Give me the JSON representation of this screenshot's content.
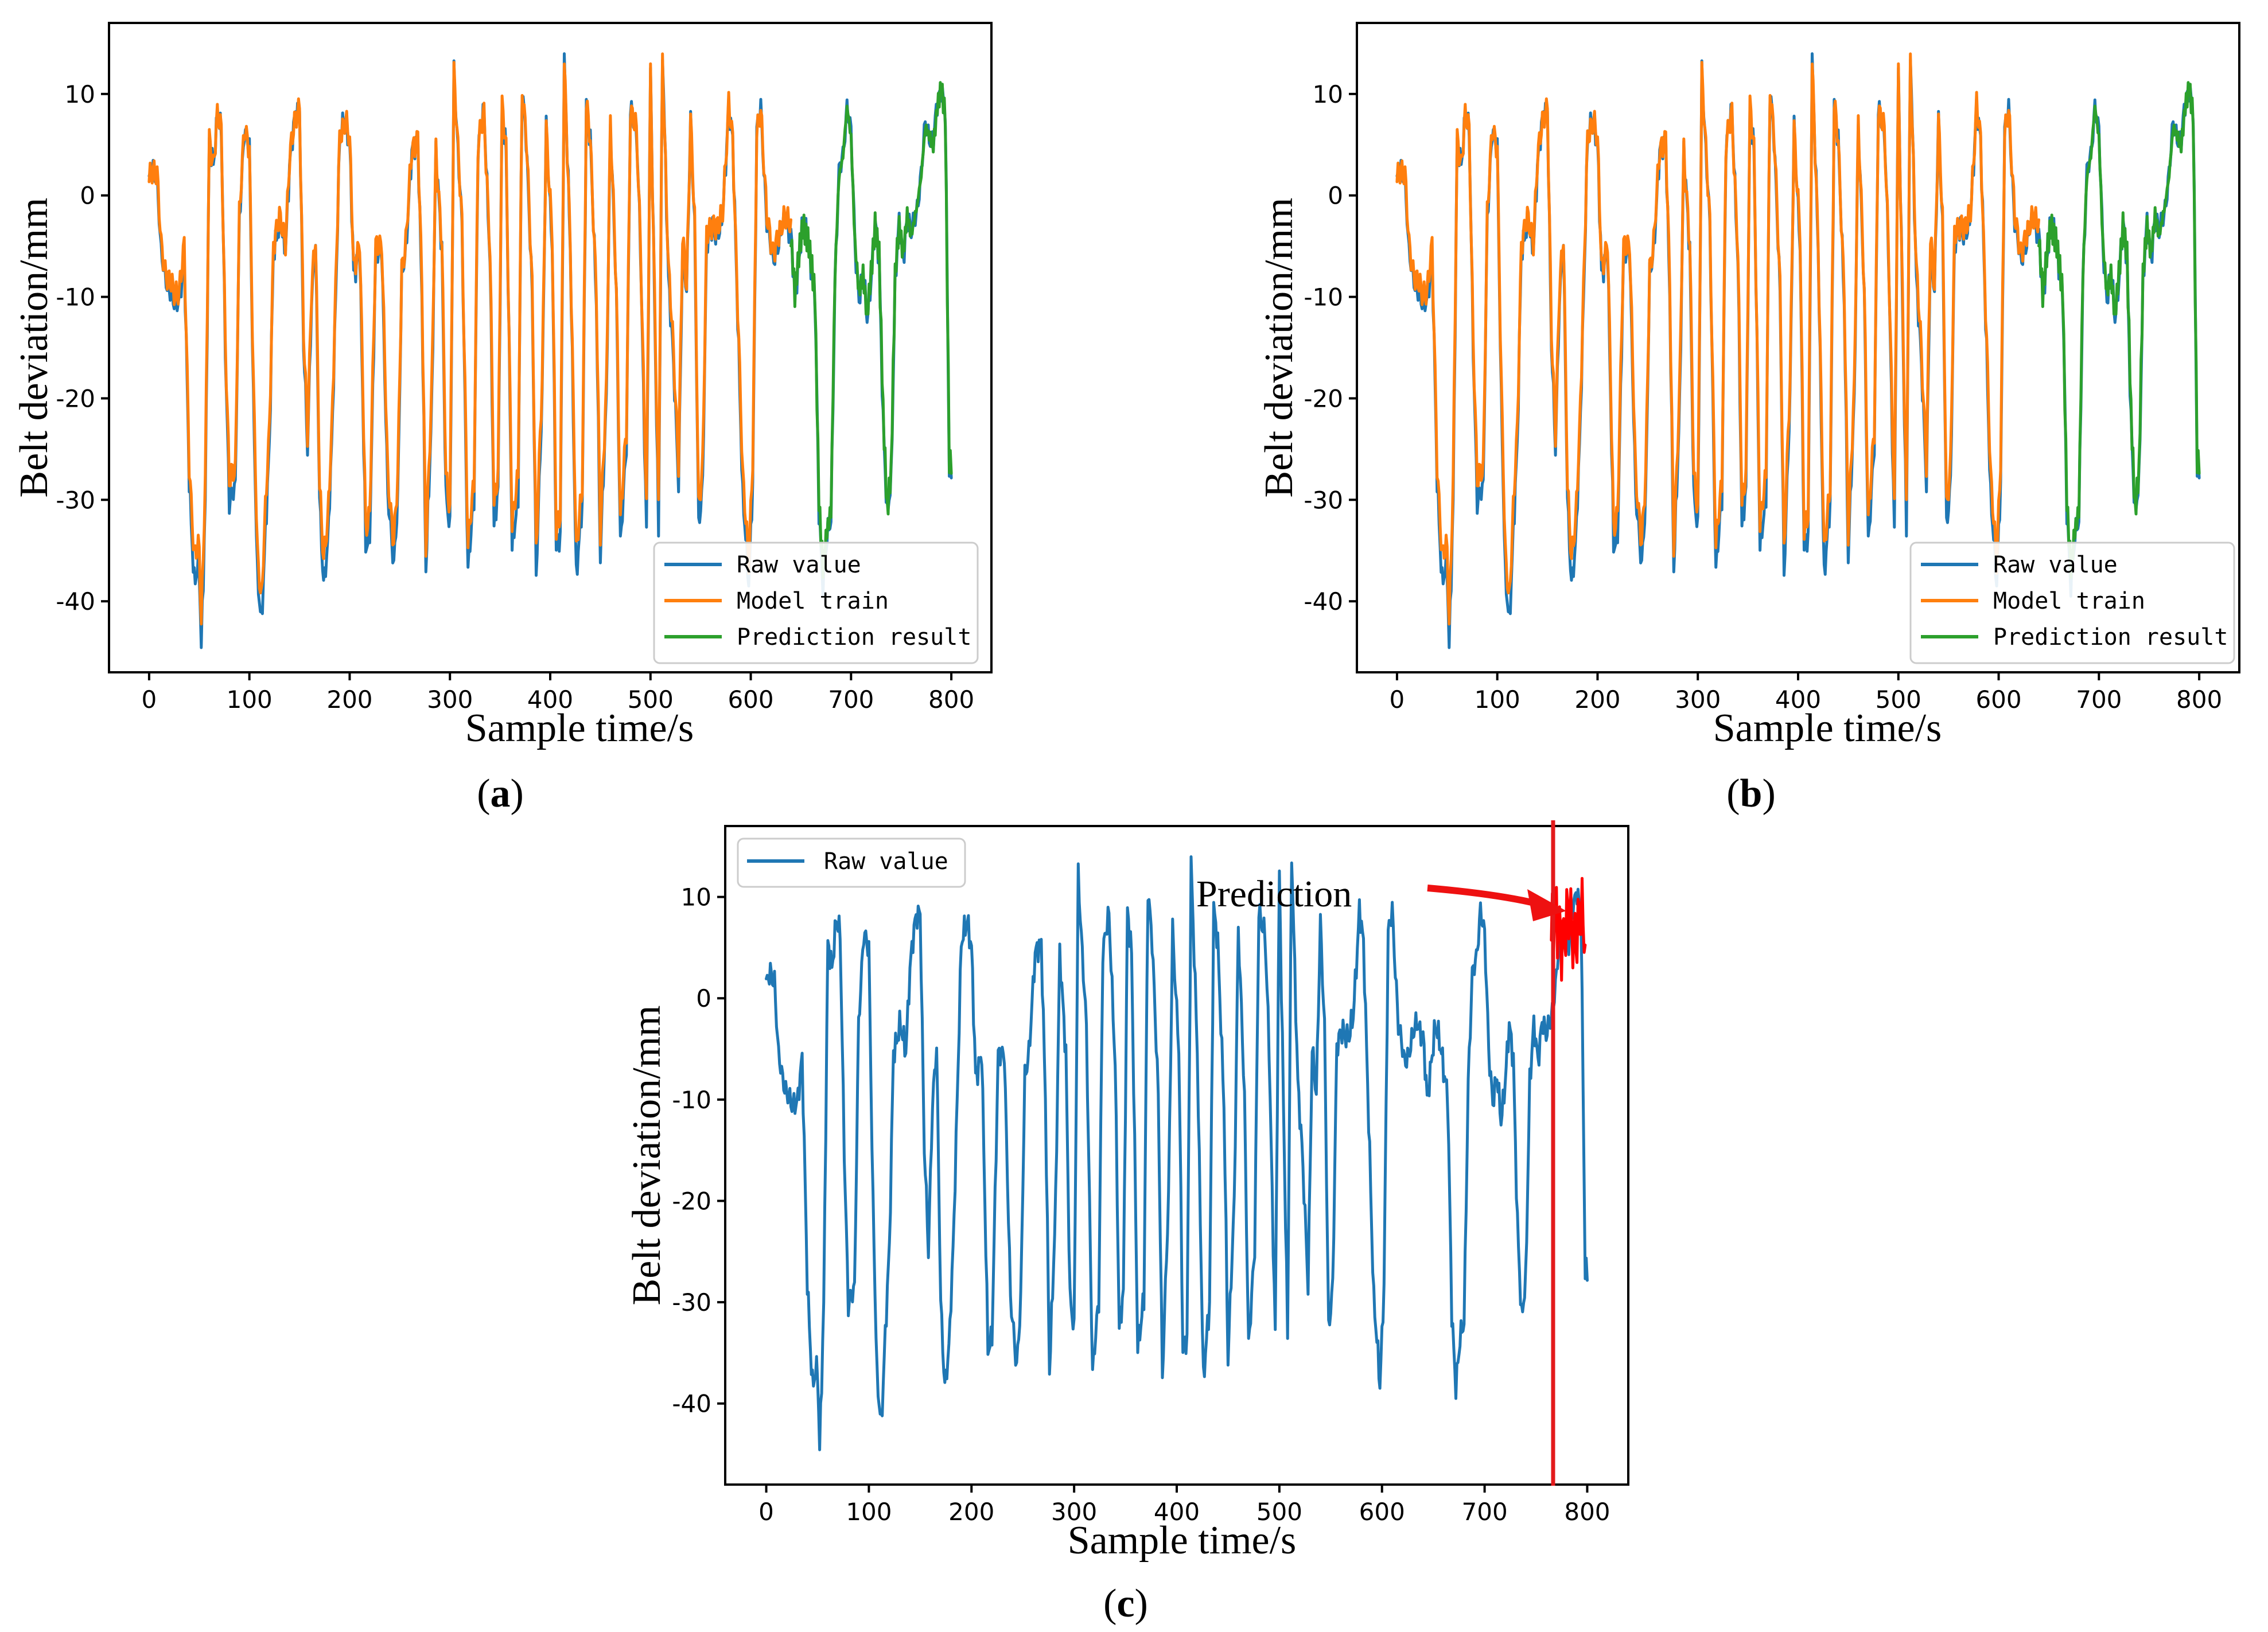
{
  "chart_data": [
    {
      "panel": "a",
      "type": "line",
      "xlabel": "Sample time/s",
      "ylabel": "Belt deviation/mm",
      "xlim": [
        -40,
        840
      ],
      "ylim": [
        -47,
        17
      ],
      "xticks": [
        0,
        100,
        200,
        300,
        400,
        500,
        600,
        700,
        800
      ],
      "yticks": [
        10,
        0,
        -10,
        -20,
        -30,
        -40
      ],
      "legend_position": "lower-right",
      "legend": [
        "Raw value",
        "Model train",
        "Prediction result"
      ],
      "series": [
        {
          "name": "Raw value",
          "color": "#1f77b4",
          "x_range": [
            0,
            800
          ]
        },
        {
          "name": "Model train",
          "color": "#ff7f0e",
          "x_range": [
            0,
            640
          ]
        },
        {
          "name": "Prediction result",
          "color": "#2ca02c",
          "x_range": [
            640,
            800
          ]
        }
      ]
    },
    {
      "panel": "b",
      "type": "line",
      "xlabel": "Sample time/s",
      "ylabel": "Belt deviation/mm",
      "xlim": [
        -40,
        840
      ],
      "ylim": [
        -47,
        17
      ],
      "xticks": [
        0,
        100,
        200,
        300,
        400,
        500,
        600,
        700,
        800
      ],
      "yticks": [
        10,
        0,
        -10,
        -20,
        -30,
        -40
      ],
      "legend_position": "lower-right",
      "legend": [
        "Raw value",
        "Model train",
        "Prediction result"
      ],
      "series": [
        {
          "name": "Raw value",
          "color": "#1f77b4",
          "x_range": [
            0,
            800
          ]
        },
        {
          "name": "Model train",
          "color": "#ff7f0e",
          "x_range": [
            0,
            640
          ]
        },
        {
          "name": "Prediction result",
          "color": "#2ca02c",
          "x_range": [
            640,
            800
          ]
        }
      ]
    },
    {
      "panel": "c",
      "type": "line",
      "xlabel": "Sample time/s",
      "ylabel": "Belt deviation/mm",
      "xlim": [
        -40,
        840
      ],
      "ylim": [
        -48,
        17
      ],
      "xticks": [
        0,
        100,
        200,
        300,
        400,
        500,
        600,
        700,
        800
      ],
      "yticks": [
        10,
        0,
        -10,
        -20,
        -30,
        -40
      ],
      "legend_position": "upper-left",
      "legend": [
        "Raw value"
      ],
      "annotation": "Prediction",
      "prediction_start": 765,
      "series": [
        {
          "name": "Raw value",
          "color": "#1f77b4",
          "x_range": [
            0,
            800
          ]
        },
        {
          "name": "Prediction",
          "color": "#ff0000",
          "x_range": [
            765,
            798
          ]
        }
      ]
    }
  ],
  "raw_series_keypoints": [
    [
      0,
      1
    ],
    [
      4,
      2.5
    ],
    [
      8,
      2
    ],
    [
      12,
      -6
    ],
    [
      16,
      -8
    ],
    [
      20,
      -9
    ],
    [
      25,
      -11
    ],
    [
      30,
      -10
    ],
    [
      35,
      -6
    ],
    [
      40,
      -28
    ],
    [
      45,
      -38
    ],
    [
      50,
      -37
    ],
    [
      52,
      -44.5
    ],
    [
      56,
      -30
    ],
    [
      60,
      5
    ],
    [
      64,
      3
    ],
    [
      68,
      8
    ],
    [
      72,
      6
    ],
    [
      76,
      -15
    ],
    [
      80,
      -30
    ],
    [
      86,
      -29
    ],
    [
      90,
      -2
    ],
    [
      95,
      6
    ],
    [
      100,
      5
    ],
    [
      104,
      -20
    ],
    [
      108,
      -38
    ],
    [
      112,
      -42
    ],
    [
      116,
      -33
    ],
    [
      120,
      -25
    ],
    [
      124,
      -5
    ],
    [
      130,
      -3
    ],
    [
      136,
      -5
    ],
    [
      140,
      3
    ],
    [
      146,
      8
    ],
    [
      150,
      9
    ],
    [
      154,
      -15
    ],
    [
      158,
      -25
    ],
    [
      162,
      -10
    ],
    [
      166,
      -5
    ],
    [
      170,
      -30
    ],
    [
      174,
      -38
    ],
    [
      178,
      -35
    ],
    [
      182,
      -25
    ],
    [
      186,
      -10
    ],
    [
      190,
      5
    ],
    [
      196,
      8
    ],
    [
      200,
      5
    ],
    [
      204,
      -8
    ],
    [
      210,
      -5
    ],
    [
      216,
      -35
    ],
    [
      220,
      -33
    ],
    [
      226,
      -6
    ],
    [
      232,
      -5
    ],
    [
      238,
      -30
    ],
    [
      244,
      -36
    ],
    [
      248,
      -30
    ],
    [
      252,
      -8
    ],
    [
      256,
      -5
    ],
    [
      262,
      4
    ],
    [
      268,
      6
    ],
    [
      272,
      -10
    ],
    [
      276,
      -37
    ],
    [
      282,
      -20
    ],
    [
      286,
      4
    ],
    [
      292,
      -5
    ],
    [
      296,
      -30
    ],
    [
      300,
      -33
    ],
    [
      304,
      12.5
    ],
    [
      308,
      4
    ],
    [
      312,
      -3
    ],
    [
      318,
      -37
    ],
    [
      324,
      -30
    ],
    [
      328,
      5
    ],
    [
      334,
      8
    ],
    [
      340,
      -6
    ],
    [
      344,
      -33
    ],
    [
      348,
      -29
    ],
    [
      352,
      9
    ],
    [
      356,
      4
    ],
    [
      362,
      -34
    ],
    [
      368,
      -30
    ],
    [
      372,
      11
    ],
    [
      376,
      6
    ],
    [
      382,
      -10
    ],
    [
      386,
      -37
    ],
    [
      392,
      -20
    ],
    [
      396,
      7
    ],
    [
      402,
      -5
    ],
    [
      406,
      -35
    ],
    [
      410,
      -33
    ],
    [
      414,
      13
    ],
    [
      420,
      -5
    ],
    [
      426,
      -38
    ],
    [
      432,
      -30
    ],
    [
      436,
      9
    ],
    [
      440,
      5
    ],
    [
      446,
      -10
    ],
    [
      450,
      -36
    ],
    [
      456,
      -20
    ],
    [
      460,
      7
    ],
    [
      466,
      -10
    ],
    [
      470,
      -34
    ],
    [
      476,
      -25
    ],
    [
      480,
      9
    ],
    [
      486,
      6
    ],
    [
      490,
      -5
    ],
    [
      496,
      -33
    ],
    [
      500,
      12
    ],
    [
      504,
      -10
    ],
    [
      508,
      -33
    ],
    [
      512,
      14
    ],
    [
      518,
      -8
    ],
    [
      522,
      -15
    ],
    [
      528,
      -28
    ],
    [
      532,
      -5
    ],
    [
      536,
      -10
    ],
    [
      540,
      8
    ],
    [
      544,
      -3
    ],
    [
      548,
      -33
    ],
    [
      552,
      -28
    ],
    [
      556,
      -5
    ],
    [
      562,
      -3
    ],
    [
      568,
      -4
    ],
    [
      572,
      -2
    ],
    [
      578,
      9
    ],
    [
      582,
      5
    ],
    [
      588,
      -15
    ],
    [
      592,
      -30
    ],
    [
      598,
      -38
    ],
    [
      602,
      -28
    ],
    [
      606,
      6
    ],
    [
      610,
      9
    ],
    [
      616,
      -3
    ],
    [
      622,
      -6
    ],
    [
      628,
      -5
    ],
    [
      634,
      -2
    ],
    [
      640,
      -4
    ],
    [
      644,
      -10
    ],
    [
      648,
      -6
    ],
    [
      652,
      -3
    ],
    [
      658,
      -5
    ],
    [
      664,
      -10
    ],
    [
      668,
      -31
    ],
    [
      672,
      -38
    ],
    [
      676,
      -34
    ],
    [
      680,
      -32
    ],
    [
      684,
      -8
    ],
    [
      688,
      2
    ],
    [
      692,
      4
    ],
    [
      696,
      9
    ],
    [
      700,
      6
    ],
    [
      704,
      -5
    ],
    [
      708,
      -10
    ],
    [
      712,
      -8
    ],
    [
      716,
      -12
    ],
    [
      720,
      -8
    ],
    [
      724,
      -3
    ],
    [
      728,
      -6
    ],
    [
      732,
      -22
    ],
    [
      736,
      -32
    ],
    [
      740,
      -28
    ],
    [
      744,
      -8
    ],
    [
      748,
      -3
    ],
    [
      752,
      -6
    ],
    [
      756,
      -2
    ],
    [
      760,
      -4
    ],
    [
      766,
      -1
    ],
    [
      770,
      2
    ],
    [
      774,
      7
    ],
    [
      778,
      6
    ],
    [
      782,
      5
    ],
    [
      786,
      9
    ],
    [
      790,
      11
    ],
    [
      794,
      8
    ],
    [
      798,
      -27
    ]
  ]
}
